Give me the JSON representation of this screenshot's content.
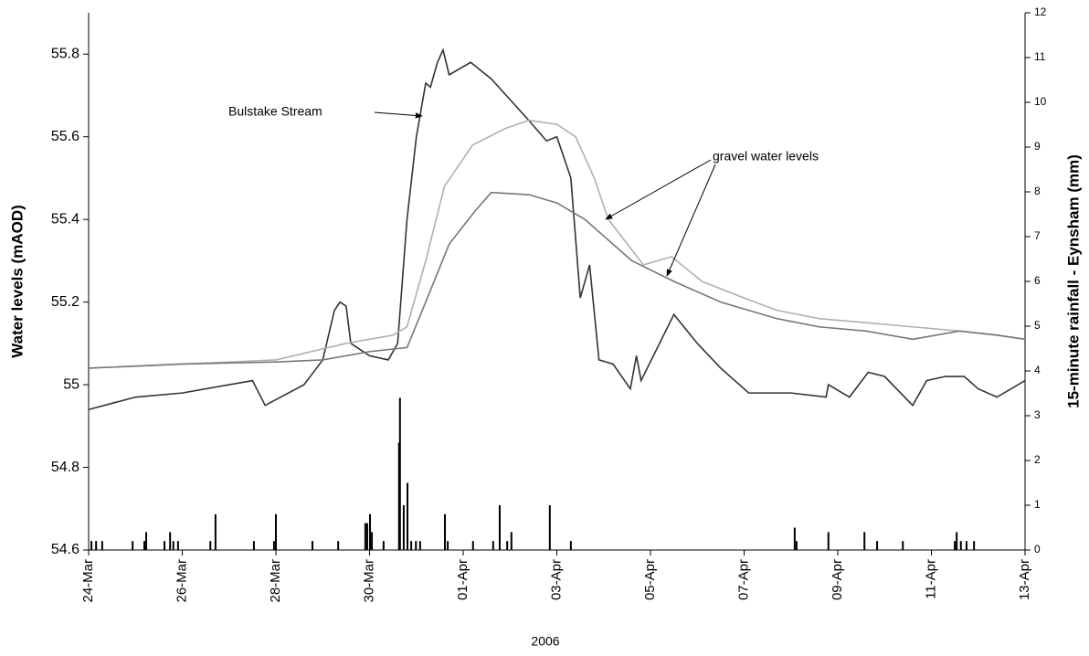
{
  "chart_data": {
    "type": "line",
    "x_label": "2006",
    "y_label": "Water levels (mAOD)",
    "y2_label": "15-minute rainfall - Eynsham (mm)",
    "xlim": [
      0,
      20
    ],
    "xticks": [
      {
        "value": 0,
        "label": "24-Mar"
      },
      {
        "value": 2,
        "label": "26-Mar"
      },
      {
        "value": 4,
        "label": "28-Mar"
      },
      {
        "value": 6,
        "label": "30-Mar"
      },
      {
        "value": 8,
        "label": "01-Apr"
      },
      {
        "value": 10,
        "label": "03-Apr"
      },
      {
        "value": 12,
        "label": "05-Apr"
      },
      {
        "value": 14,
        "label": "07-Apr"
      },
      {
        "value": 16,
        "label": "09-Apr"
      },
      {
        "value": 18,
        "label": "11-Apr"
      },
      {
        "value": 20,
        "label": "13-Apr"
      }
    ],
    "ylim": [
      54.6,
      55.9
    ],
    "yticks": [
      54.6,
      54.8,
      55,
      55.2,
      55.4,
      55.6,
      55.8
    ],
    "y2lim": [
      0,
      12
    ],
    "y2ticks": [
      0,
      1,
      2,
      3,
      4,
      5,
      6,
      7,
      8,
      9,
      10,
      11,
      12
    ],
    "annotations": [
      "Bulstake Stream",
      "gravel water levels"
    ],
    "series": [
      {
        "type": "line",
        "color": "#333333",
        "x": [
          0,
          1,
          2,
          3,
          3.5,
          3.77,
          4.1,
          4.6,
          5.0,
          5.25,
          5.37,
          5.5,
          5.6,
          6.0,
          6.4,
          6.6,
          6.8,
          7.0,
          7.2,
          7.3,
          7.45,
          7.57,
          7.7,
          8.16,
          8.6,
          9.0,
          9.4,
          9.78,
          10.0,
          10.3,
          10.5,
          10.7,
          10.9,
          11.2,
          11.57,
          11.7,
          11.8,
          12.5,
          13.0,
          13.5,
          14.1,
          15.0,
          15.75,
          15.8,
          16.25,
          16.65,
          17.0,
          17.6,
          17.9,
          18.3,
          18.7,
          19.0,
          19.4,
          20.0
        ],
        "values": [
          54.94,
          54.97,
          54.98,
          55.0,
          55.01,
          54.95,
          54.97,
          55.0,
          55.06,
          55.18,
          55.2,
          55.19,
          55.1,
          55.07,
          55.06,
          55.1,
          55.4,
          55.6,
          55.73,
          55.72,
          55.78,
          55.81,
          55.75,
          55.78,
          55.74,
          55.69,
          55.64,
          55.59,
          55.6,
          55.5,
          55.21,
          55.29,
          55.06,
          55.05,
          54.99,
          55.07,
          55.01,
          55.17,
          55.1,
          55.04,
          54.98,
          54.98,
          54.97,
          55.0,
          54.97,
          55.03,
          55.02,
          54.95,
          55.01,
          55.02,
          55.02,
          54.99,
          54.97,
          55.01
        ]
      },
      {
        "type": "line",
        "color": "#b0b0b0",
        "x": [
          0,
          2,
          4,
          5.5,
          6.5,
          6.8,
          7.2,
          7.6,
          8.2,
          8.9,
          9.4,
          10.0,
          10.4,
          10.8,
          11.1,
          11.85,
          12.45,
          13.1,
          14.0,
          14.7,
          15.6,
          16.6,
          17.6,
          18.6,
          19.4,
          20.0
        ],
        "values": [
          55.04,
          55.05,
          55.06,
          55.1,
          55.12,
          55.14,
          55.3,
          55.48,
          55.58,
          55.62,
          55.64,
          55.63,
          55.6,
          55.5,
          55.4,
          55.29,
          55.31,
          55.25,
          55.21,
          55.18,
          55.16,
          55.15,
          55.14,
          55.13,
          55.12,
          55.11
        ]
      },
      {
        "type": "line",
        "color": "#777777",
        "x": [
          0,
          2,
          4,
          5,
          6,
          6.8,
          7.2,
          7.7,
          8.25,
          8.6,
          9.4,
          10.0,
          10.6,
          11.6,
          12.5,
          13.5,
          14.7,
          15.6,
          16.6,
          17.6,
          18.6,
          19.4,
          20.0
        ],
        "values": [
          55.04,
          55.05,
          55.055,
          55.06,
          55.08,
          55.09,
          55.2,
          55.34,
          55.42,
          55.465,
          55.46,
          55.44,
          55.4,
          55.3,
          55.25,
          55.2,
          55.16,
          55.14,
          55.13,
          55.11,
          55.13,
          55.12,
          55.11
        ]
      },
      {
        "type": "bar",
        "axis": "y2",
        "color": "#000000",
        "x": [
          0.06,
          0.16,
          0.29,
          0.94,
          1.19,
          1.23,
          1.62,
          1.74,
          1.81,
          1.91,
          2.6,
          2.71,
          3.53,
          3.96,
          4.0,
          4.78,
          5.33,
          5.91,
          5.95,
          6.01,
          6.05,
          6.3,
          6.63,
          6.65,
          6.73,
          6.81,
          6.89,
          6.99,
          7.08,
          7.61,
          7.67,
          8.21,
          8.64,
          8.78,
          8.94,
          9.03,
          9.85,
          10.3,
          15.08,
          15.12,
          15.8,
          16.57,
          16.84,
          17.39,
          18.5,
          18.54,
          18.63,
          18.75,
          18.91
        ],
        "values": [
          0.2,
          0.2,
          0.2,
          0.2,
          0.2,
          0.4,
          0.2,
          0.4,
          0.2,
          0.2,
          0.2,
          0.8,
          0.2,
          0.2,
          0.8,
          0.2,
          0.2,
          0.6,
          0.6,
          0.8,
          0.4,
          0.2,
          2.4,
          3.4,
          1.0,
          1.5,
          0.2,
          0.2,
          0.2,
          0.8,
          0.2,
          0.2,
          0.2,
          1.0,
          0.2,
          0.4,
          1.0,
          0.2,
          0.5,
          0.2,
          0.4,
          0.4,
          0.2,
          0.2,
          0.2,
          0.4,
          0.2,
          0.2,
          0.2
        ]
      }
    ]
  }
}
